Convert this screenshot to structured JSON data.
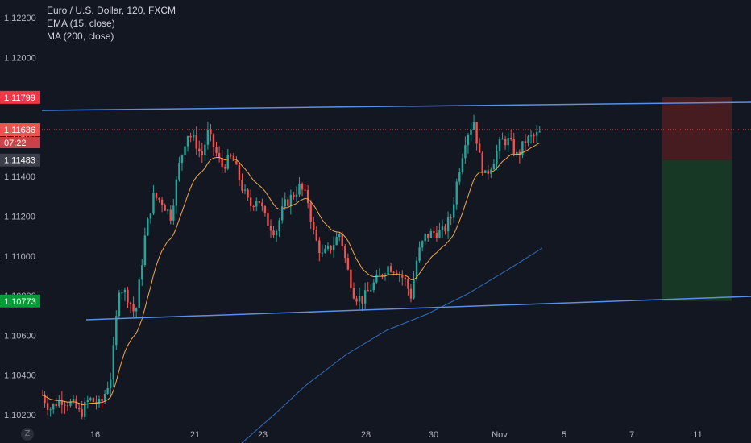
{
  "legend": {
    "symbol": "Euro / U.S. Dollar, 120, FXCM",
    "ema": "EMA (15, close)",
    "ma": "MA (200, close)"
  },
  "logo_letter": "Z",
  "price_tags": {
    "top": "1.11799",
    "current": "1.11636",
    "countdown": "07:22",
    "mid": "1.11483",
    "bottom": "1.10773"
  },
  "colors": {
    "background": "#131722",
    "up": "#26a69a",
    "down": "#ef5350",
    "trendline": "#5b8ee6",
    "ema": "#f0a84a",
    "ma": "#2e6fbd",
    "stop_zone": "#4a1c22",
    "target_zone": "#163a26"
  },
  "chart_data": {
    "type": "candlestick",
    "title": "Euro / U.S. Dollar, 120, FXCM",
    "y_ticks": [
      "1.12200",
      "1.12000",
      "1.11800",
      "1.11600",
      "1.11400",
      "1.11200",
      "1.11000",
      "1.10800",
      "1.10600",
      "1.10400",
      "1.10200"
    ],
    "ylim": [
      1.1014,
      1.1232
    ],
    "x_ticks": [
      "16",
      "21",
      "23",
      "28",
      "30",
      "Nov",
      "5",
      "7",
      "11"
    ],
    "ohlc_points": [
      {
        "t": "16",
        "close": 1.1028
      },
      {
        "t": "17",
        "close": 1.1069
      },
      {
        "t": "18",
        "close": 1.1128
      },
      {
        "t": "21",
        "close": 1.116
      },
      {
        "t": "22",
        "close": 1.1148
      },
      {
        "t": "23",
        "close": 1.1125
      },
      {
        "t": "24",
        "close": 1.1135
      },
      {
        "t": "25",
        "close": 1.1103
      },
      {
        "t": "28",
        "close": 1.1085
      },
      {
        "t": "29",
        "close": 1.109
      },
      {
        "t": "30",
        "close": 1.1104
      },
      {
        "t": "31",
        "close": 1.115
      },
      {
        "t": "Nov 1",
        "close": 1.1152
      },
      {
        "t": "Nov 4",
        "close": 1.1164
      }
    ],
    "indicators": [
      {
        "name": "EMA (15, close)"
      },
      {
        "name": "MA (200, close)"
      }
    ],
    "trendlines": [
      {
        "from": {
          "t": "14",
          "price": 1.1172
        },
        "to": {
          "t": "11+",
          "price": 1.1179
        }
      },
      {
        "from": {
          "t": "16",
          "price": 1.1067
        },
        "to": {
          "t": "11+",
          "price": 1.1078
        }
      }
    ],
    "position": {
      "type": "short",
      "stop": 1.11799,
      "entry": 1.11483,
      "target": 1.10773
    },
    "grid": false,
    "current_price": 1.11636
  }
}
